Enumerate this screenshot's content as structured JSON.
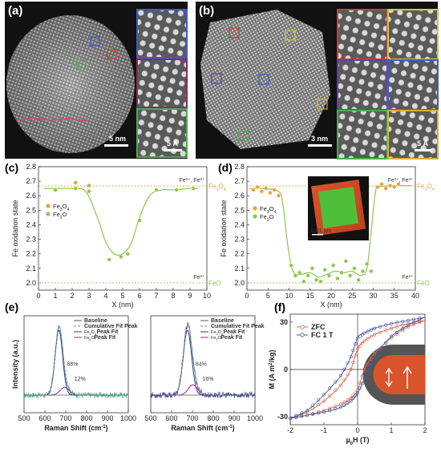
{
  "figure": {
    "panels": [
      "(a)",
      "(b)",
      "(c)",
      "(d)",
      "(e)",
      "(f)"
    ],
    "colors": {
      "orange": "#e8a13a",
      "green": "#8cc94a",
      "blue": "#2d3a8c",
      "teal": "#4caf8f",
      "magenta": "#9b2a86",
      "red_curve": "#d96a4a",
      "navy_curve": "#4a5aa8"
    }
  },
  "panel_a": {
    "label": "(a)",
    "scale_bar": "5 nm",
    "inset_scale_bar": "5 Å"
  },
  "panel_b": {
    "label": "(b)",
    "scale_bar": "3 nm",
    "inset_scale_bar": "5 Å"
  },
  "chart_data": [
    {
      "panel": "(c)",
      "type": "line",
      "xlabel": "X (nm)",
      "ylabel": "Fe oxidation state",
      "xlim": [
        0,
        10
      ],
      "ylim": [
        1.95,
        2.8
      ],
      "xticks": [
        "0",
        "1",
        "2",
        "3",
        "4",
        "5",
        "6",
        "7",
        "8",
        "9",
        "10"
      ],
      "yticks": [
        "2.0",
        "2.1",
        "2.2",
        "2.3",
        "2.4",
        "2.5",
        "2.6",
        "2.7",
        "2.8"
      ],
      "ref_lines": [
        {
          "y": 2.667,
          "label": "Fe3O4",
          "color": "#e8a13a"
        },
        {
          "y": 2.0,
          "label": "FeO",
          "color": "#8cc94a"
        }
      ],
      "annotations": {
        "top": "Fe2+, Fe3+",
        "bottom": "Fe2+"
      },
      "legend": [
        "Fe3O4",
        "Fe2O"
      ],
      "series": [
        {
          "name": "Fe3O4",
          "color": "#e8a13a",
          "x": [
            2.2,
            3.0
          ],
          "y": [
            2.69,
            2.67
          ]
        },
        {
          "name": "Fe2O",
          "color": "#8cc94a",
          "x": [
            1.0,
            2.2,
            3.0,
            4.2,
            4.9,
            5.3,
            6.0,
            7.0,
            8.2,
            9.2
          ],
          "y": [
            2.64,
            2.65,
            2.63,
            2.16,
            2.18,
            2.2,
            2.43,
            2.64,
            2.64,
            2.65
          ]
        }
      ],
      "fit": {
        "x": [
          0.3,
          1,
          2,
          2.8,
          3.5,
          4.0,
          4.5,
          5.0,
          5.5,
          6.0,
          6.6,
          7.3,
          8,
          9,
          9.5
        ],
        "y": [
          2.65,
          2.65,
          2.65,
          2.63,
          2.45,
          2.28,
          2.2,
          2.2,
          2.27,
          2.45,
          2.6,
          2.64,
          2.64,
          2.65,
          2.65
        ]
      }
    },
    {
      "panel": "(d)",
      "type": "line",
      "xlabel": "X (nm)",
      "ylabel": "Fe oxidation state",
      "xlim": [
        0,
        40
      ],
      "ylim": [
        1.95,
        2.8
      ],
      "xticks": [
        "0",
        "5",
        "10",
        "15",
        "20",
        "25",
        "30",
        "35",
        "40"
      ],
      "yticks": [
        "2.0",
        "2.1",
        "2.2",
        "2.3",
        "2.4",
        "2.5",
        "2.6",
        "2.7",
        "2.8"
      ],
      "ref_lines": [
        {
          "y": 2.667,
          "label": "Fe3O4",
          "color": "#e8a13a"
        },
        {
          "y": 2.0,
          "label": "FeO",
          "color": "#8cc94a"
        }
      ],
      "annotations": {
        "top": "Fe2+, Fe3+",
        "bottom": "Fe2+",
        "inset_scale": "0.01 µm"
      },
      "legend": [
        "Fe3O4",
        "Fe2O"
      ],
      "series": [
        {
          "name": "Fe3O4",
          "color": "#e8a13a",
          "x": [
            1.5,
            2.5,
            3.5,
            4.5,
            5.5,
            6.5,
            7.5,
            31,
            32,
            33,
            34,
            35,
            36
          ],
          "y": [
            2.64,
            2.66,
            2.63,
            2.65,
            2.62,
            2.64,
            2.6,
            2.66,
            2.68,
            2.65,
            2.67,
            2.66,
            2.68
          ]
        },
        {
          "name": "Fe2O",
          "color": "#8cc94a",
          "x": [
            10.5,
            11.5,
            12.5,
            13.5,
            14.5,
            15.5,
            16.5,
            17.5,
            18.5,
            19.5,
            20.5,
            21.5,
            22.5,
            23.5,
            24.5,
            25.5,
            26.5,
            27.5,
            28.5,
            29.5
          ],
          "y": [
            2.12,
            2.05,
            2.07,
            2.01,
            2.05,
            2.1,
            2.02,
            2.01,
            2.09,
            2.05,
            2.12,
            2.03,
            2.07,
            2.15,
            2.05,
            2.1,
            2.02,
            2.08,
            2.13,
            2.08
          ]
        }
      ],
      "fit": {
        "x": [
          0.5,
          4,
          7.5,
          8.5,
          9.5,
          10.5,
          11.5,
          13,
          15,
          17,
          19,
          21,
          23,
          25,
          27,
          28.5,
          29.5,
          30.5,
          31.5,
          35,
          39
        ],
        "y": [
          2.65,
          2.65,
          2.63,
          2.55,
          2.3,
          2.12,
          2.06,
          2.06,
          2.07,
          2.04,
          2.06,
          2.08,
          2.07,
          2.08,
          2.05,
          2.1,
          2.35,
          2.62,
          2.66,
          2.67,
          2.67
        ]
      }
    },
    {
      "panel": "(e)-left",
      "type": "line",
      "xlabel": "Raman Shift (cm-1)",
      "ylabel": "Intensity (a.u.)",
      "xlim": [
        500,
        1000
      ],
      "xticks": [
        "500",
        "600",
        "700",
        "800",
        "900",
        "1000"
      ],
      "legend": [
        "Baseline",
        "Cumulative Fit Peak",
        "Fe3O4 Peak Fit",
        "Fe2O Peak Fit"
      ],
      "peak_labels": [
        "88%",
        "12%"
      ],
      "peaks": [
        {
          "center": 667,
          "height": 1.0,
          "width": 18
        },
        {
          "center": 695,
          "height": 0.12,
          "width": 22
        }
      ],
      "noise_color": "#4caf8f"
    },
    {
      "panel": "(e)-right",
      "type": "line",
      "xlabel": "Raman Shift (cm-1)",
      "ylabel": "",
      "xlim": [
        500,
        1000
      ],
      "xticks": [
        "500",
        "600",
        "700",
        "800",
        "900",
        "1000"
      ],
      "legend": [
        "Baseline",
        "Cumulative Fit Peak",
        "Fe3O4 Peak Fit",
        "Fe2O Peak Fit"
      ],
      "peak_labels": [
        "84%",
        "16%"
      ],
      "peaks": [
        {
          "center": 676,
          "height": 1.0,
          "width": 20
        },
        {
          "center": 702,
          "height": 0.16,
          "width": 22
        }
      ],
      "noise_color": "#2d3a8c"
    },
    {
      "panel": "(f)",
      "type": "line",
      "xlabel": "µ0H (T)",
      "ylabel": "M (A m2/kg)",
      "xlim": [
        -2,
        2
      ],
      "ylim": [
        -35,
        35
      ],
      "xticks": [
        "-2",
        "-1",
        "0",
        "1",
        "2"
      ],
      "yticks": [
        "-30",
        "0",
        "30"
      ],
      "legend": [
        "ZFC",
        "FC 1 T"
      ],
      "series": [
        {
          "name": "ZFC",
          "color": "#d96a4a",
          "x": [
            -2.0,
            -1.5,
            -1.0,
            -0.5,
            -0.2,
            0.0,
            0.2,
            0.5,
            1.0,
            1.5,
            2.0
          ],
          "y_upper": [
            -31,
            -27,
            -20,
            -10,
            0,
            13,
            18,
            22,
            26,
            29,
            31
          ],
          "y_lower": [
            -31,
            -29,
            -26,
            -22,
            -18,
            -13,
            0,
            10,
            20,
            27,
            31
          ]
        },
        {
          "name": "FC 1 T",
          "color": "#4a5aa8",
          "x": [
            -2.0,
            -1.5,
            -1.0,
            -0.5,
            -0.2,
            0.0,
            0.2,
            0.5,
            1.0,
            1.5,
            2.0
          ],
          "y_upper": [
            -31,
            -26,
            -16,
            -4,
            8,
            20,
            23,
            26,
            29,
            31,
            33
          ],
          "y_lower": [
            -31,
            -29,
            -27,
            -24,
            -20,
            -15,
            -6,
            8,
            21,
            28,
            33
          ]
        }
      ]
    }
  ]
}
